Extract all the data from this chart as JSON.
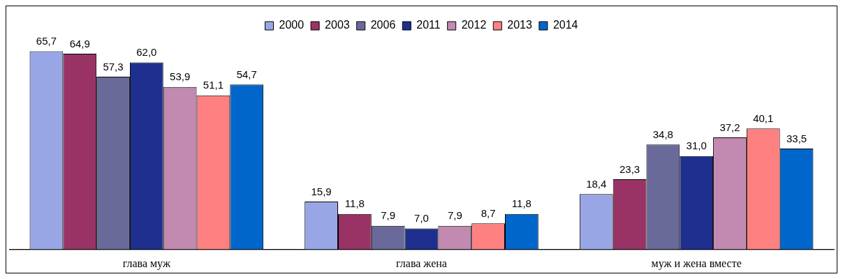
{
  "chart_data": {
    "type": "bar",
    "categories": [
      "глава муж",
      "глава жена",
      "муж и жена вместе"
    ],
    "series": [
      {
        "name": "2000",
        "color": "#99a6e6",
        "values": [
          65.7,
          15.9,
          18.4
        ],
        "value_labels": [
          "65,7",
          "15,9",
          "18,4"
        ]
      },
      {
        "name": "2003",
        "color": "#993366",
        "values": [
          64.9,
          11.8,
          23.3
        ],
        "value_labels": [
          "64,9",
          "11,8",
          "23,3"
        ]
      },
      {
        "name": "2006",
        "color": "#6a6a9a",
        "values": [
          57.3,
          7.9,
          34.8
        ],
        "value_labels": [
          "57,3",
          "7,9",
          "34,8"
        ]
      },
      {
        "name": "2011",
        "color": "#1f2f8f",
        "values": [
          62.0,
          7.0,
          31.0
        ],
        "value_labels": [
          "62,0",
          "7,0",
          "31,0"
        ]
      },
      {
        "name": "2012",
        "color": "#c28ab0",
        "values": [
          53.9,
          7.9,
          37.2
        ],
        "value_labels": [
          "53,9",
          "7,9",
          "37,2"
        ]
      },
      {
        "name": "2013",
        "color": "#ff8080",
        "values": [
          51.1,
          8.7,
          40.1
        ],
        "value_labels": [
          "51,1",
          "8,7",
          "40,1"
        ]
      },
      {
        "name": "2014",
        "color": "#0066cc",
        "values": [
          54.7,
          11.8,
          33.5
        ],
        "value_labels": [
          "54,7",
          "11,8",
          "33,5"
        ]
      }
    ],
    "legend": "top",
    "grid": false
  }
}
